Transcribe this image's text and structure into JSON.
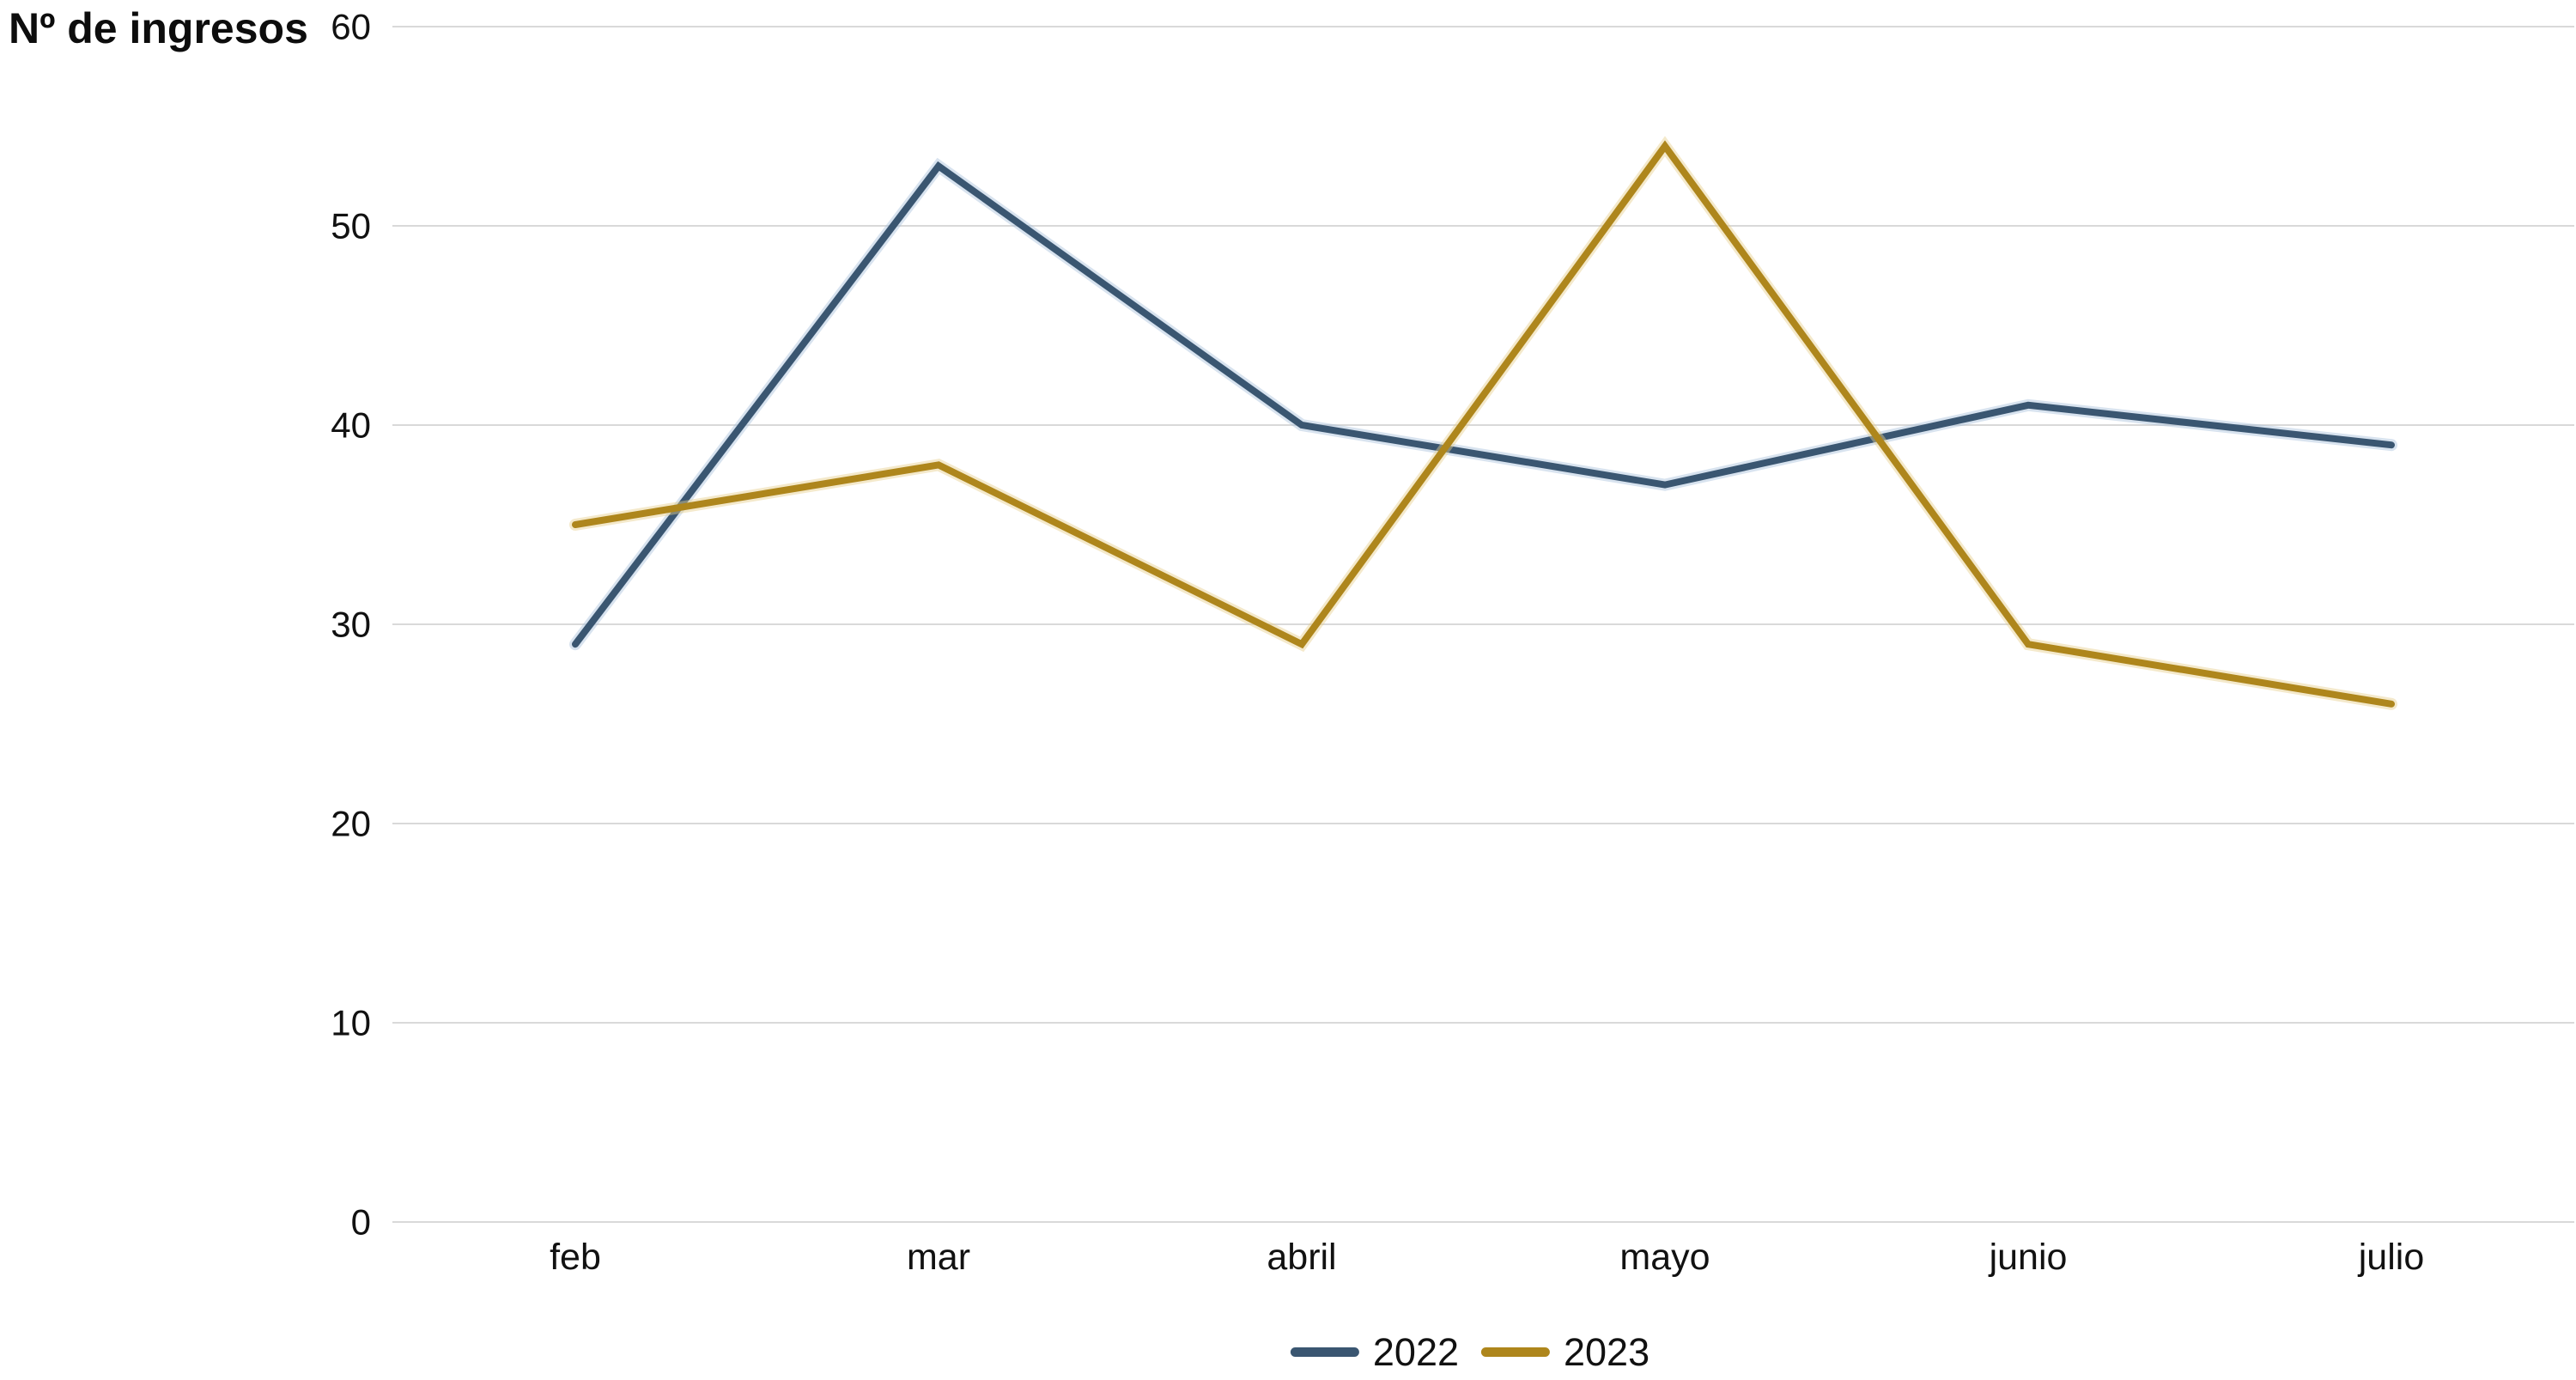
{
  "chart_data": {
    "type": "line",
    "title": "Nº de ingresos",
    "ylabel": "Nº de ingresos",
    "xlabel": "",
    "categories": [
      "feb",
      "mar",
      "abril",
      "mayo",
      "junio",
      "julio"
    ],
    "series": [
      {
        "name": "2022",
        "color": "#3A5671",
        "halo": "#A9C2DC",
        "values": [
          29,
          53,
          40,
          37,
          41,
          39
        ]
      },
      {
        "name": "2023",
        "color": "#AE861C",
        "halo": "#E6CE8C",
        "values": [
          35,
          38,
          29,
          54,
          29,
          26
        ]
      }
    ],
    "yticks": [
      0,
      10,
      20,
      30,
      40,
      50,
      60
    ],
    "ylim": [
      0,
      60
    ],
    "grid": "horizontal",
    "gridline_color": "#D9D9D9",
    "tick_text_color": "#111111",
    "legend_position": "bottom-center"
  }
}
